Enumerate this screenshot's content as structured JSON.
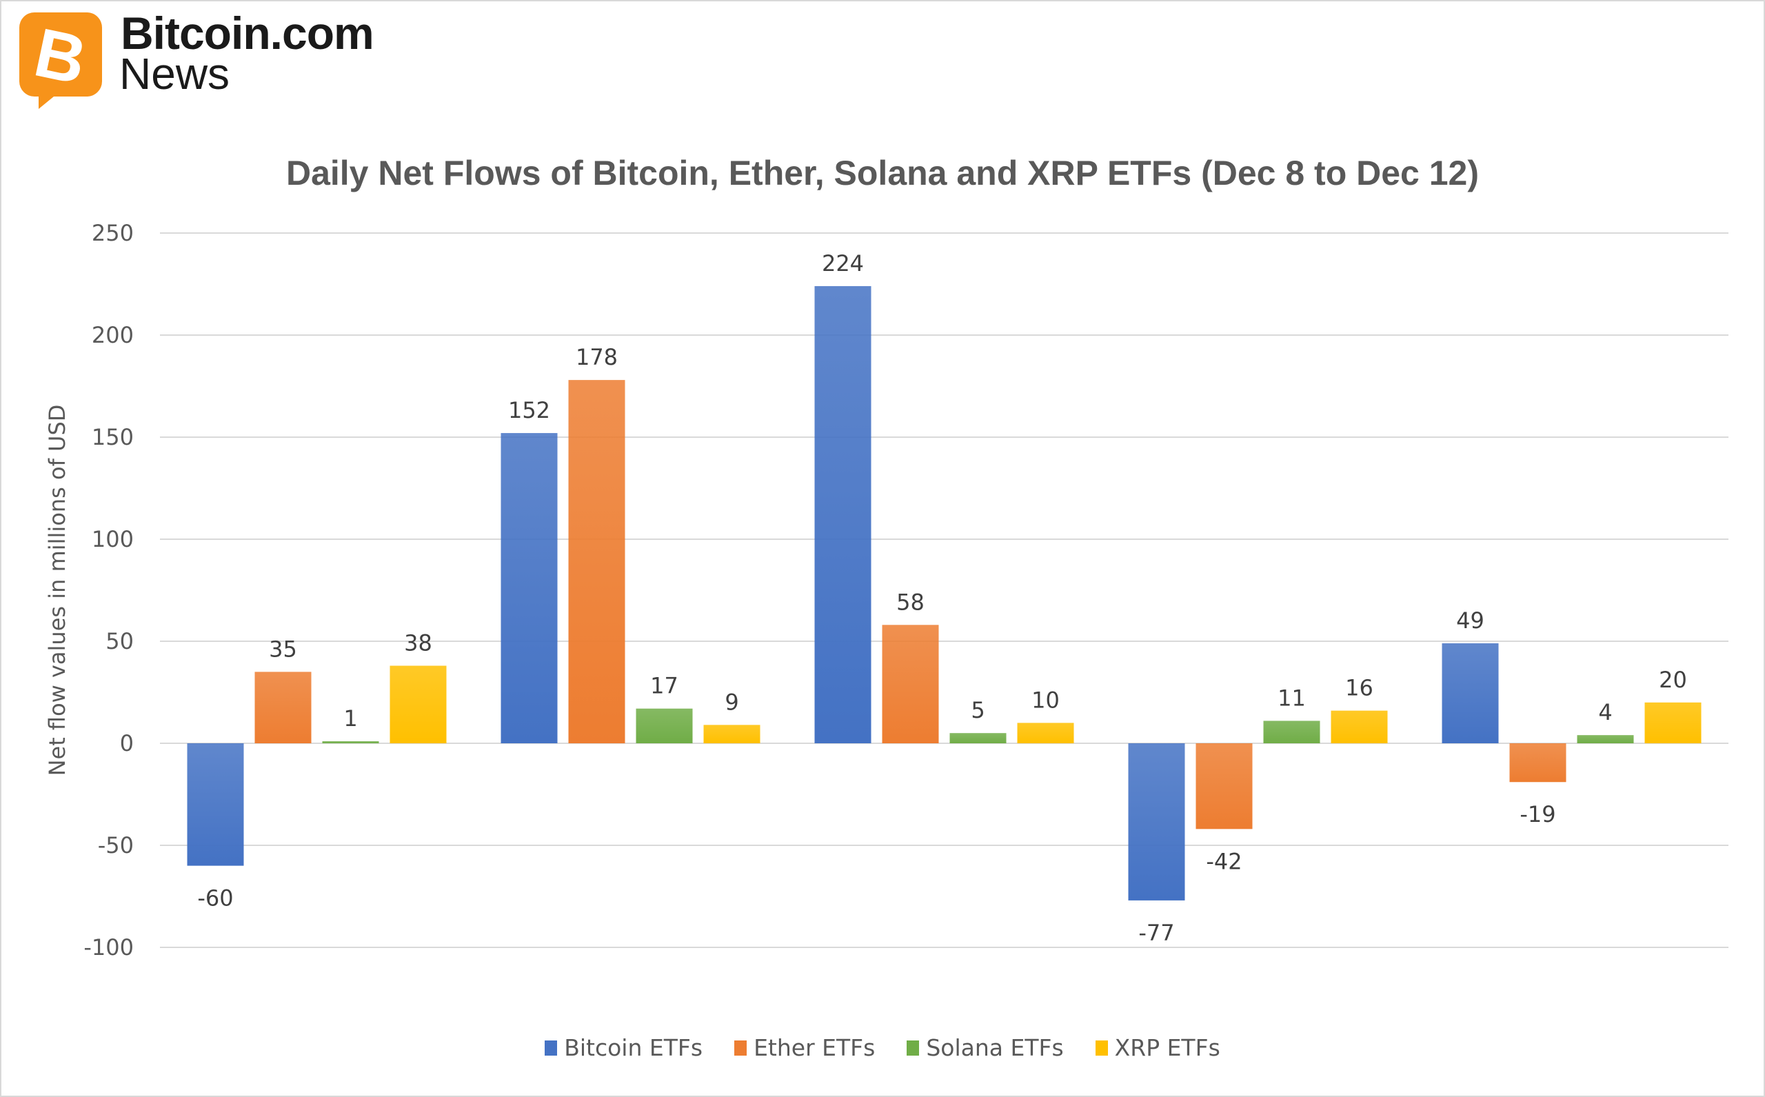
{
  "brand": {
    "name": "Bitcoin.com",
    "sub": "News",
    "color": "#F7931A"
  },
  "chart_data": {
    "type": "bar",
    "title": "Daily Net Flows of Bitcoin, Ether, Solana and XRP ETFs (Dec 8 to Dec 12)",
    "ylabel": "Net flow values in millions of USD",
    "xlabel": "",
    "ylim": [
      -100,
      250
    ],
    "yticks": [
      -100,
      -50,
      0,
      50,
      100,
      150,
      200,
      250
    ],
    "grid": true,
    "legend_position": "bottom",
    "categories": [
      "",
      "",
      "",
      "",
      ""
    ],
    "series": [
      {
        "name": "Bitcoin ETFs",
        "color": "#4472C4",
        "values": [
          -60,
          152,
          224,
          -77,
          49
        ]
      },
      {
        "name": "Ether ETFs",
        "color": "#ED7D31",
        "values": [
          35,
          178,
          58,
          -42,
          -19
        ]
      },
      {
        "name": "Solana ETFs",
        "color": "#70AD47",
        "values": [
          1,
          17,
          5,
          11,
          4
        ]
      },
      {
        "name": "XRP ETFs",
        "color": "#FFC000",
        "values": [
          38,
          9,
          10,
          16,
          20
        ]
      }
    ]
  }
}
